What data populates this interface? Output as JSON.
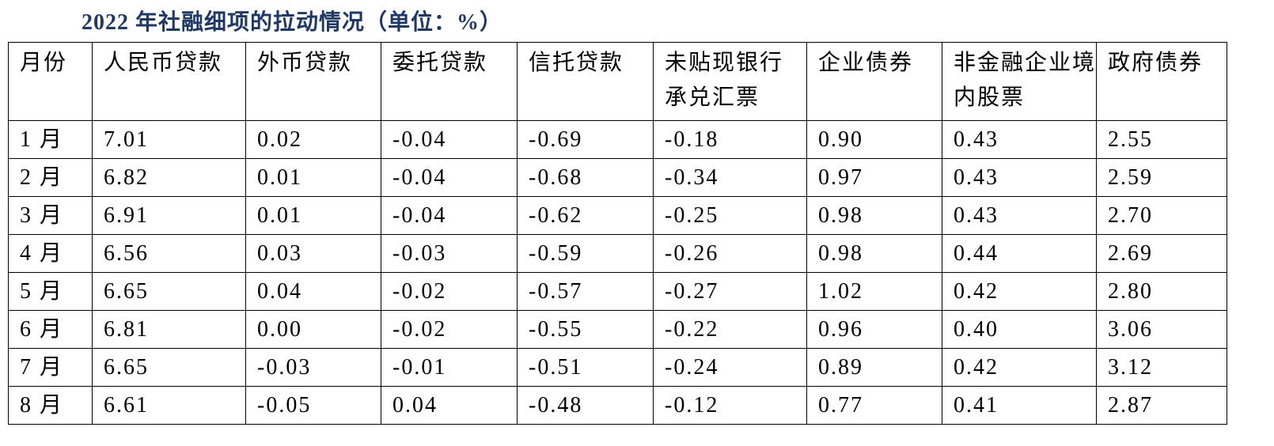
{
  "header": {
    "title": "2022 年社融细项的拉动情况（单位：%）"
  },
  "table": {
    "columns": [
      "月份",
      "人民币贷款",
      "外币贷款",
      "委托贷款",
      "信托贷款",
      "未贴现银行承兑汇票",
      "企业债券",
      "非金融企业境内股票",
      "政府债券"
    ],
    "rows": [
      [
        "1 月",
        "7.01",
        "0.02",
        "-0.04",
        "-0.69",
        "-0.18",
        "0.90",
        "0.43",
        "2.55"
      ],
      [
        "2 月",
        "6.82",
        "0.01",
        "-0.04",
        "-0.68",
        "-0.34",
        "0.97",
        "0.43",
        "2.59"
      ],
      [
        "3 月",
        "6.91",
        "0.01",
        "-0.04",
        "-0.62",
        "-0.25",
        "0.98",
        "0.43",
        "2.70"
      ],
      [
        "4 月",
        "6.56",
        "0.03",
        "-0.03",
        "-0.59",
        "-0.26",
        "0.98",
        "0.44",
        "2.69"
      ],
      [
        "5 月",
        "6.65",
        "0.04",
        "-0.02",
        "-0.57",
        "-0.27",
        "1.02",
        "0.42",
        "2.80"
      ],
      [
        "6 月",
        "6.81",
        "0.00",
        "-0.02",
        "-0.55",
        "-0.22",
        "0.96",
        "0.40",
        "3.06"
      ],
      [
        "7 月",
        "6.65",
        "-0.03",
        "-0.01",
        "-0.51",
        "-0.24",
        "0.89",
        "0.42",
        "3.12"
      ],
      [
        "8 月",
        "6.61",
        "-0.05",
        "0.04",
        "-0.48",
        "-0.12",
        "0.77",
        "0.41",
        "2.87"
      ]
    ]
  }
}
